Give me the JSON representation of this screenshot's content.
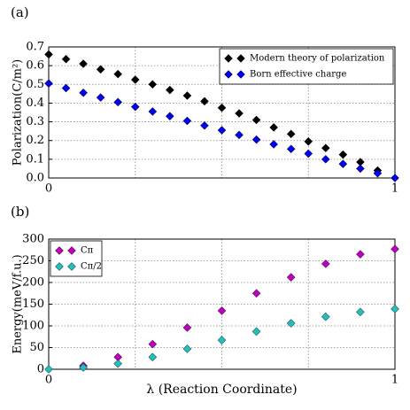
{
  "chart_data": [
    {
      "type": "scatter",
      "panel_label": "(a)",
      "ylabel": "Polarization(C/m²)",
      "x": [
        0,
        0.05,
        0.1,
        0.15,
        0.2,
        0.25,
        0.3,
        0.35,
        0.4,
        0.45,
        0.5,
        0.55,
        0.6,
        0.65,
        0.7,
        0.75,
        0.8,
        0.85,
        0.9,
        0.95,
        1.0
      ],
      "series": [
        {
          "name": "Modern theory of polarization",
          "color": "#000000",
          "values": [
            0.66,
            0.635,
            0.61,
            0.58,
            0.555,
            0.525,
            0.5,
            0.47,
            0.44,
            0.41,
            0.375,
            0.345,
            0.31,
            0.27,
            0.235,
            0.195,
            0.16,
            0.125,
            0.085,
            0.04,
            0.0
          ]
        },
        {
          "name": "Born effective charge",
          "color": "#0000ee",
          "values": [
            0.505,
            0.48,
            0.455,
            0.43,
            0.405,
            0.38,
            0.355,
            0.33,
            0.305,
            0.28,
            0.255,
            0.23,
            0.205,
            0.18,
            0.155,
            0.13,
            0.1,
            0.075,
            0.05,
            0.025,
            0.0
          ]
        }
      ],
      "xlim": [
        0,
        1
      ],
      "xticks": [
        0,
        1
      ],
      "xgrid": [
        0.25,
        0.5,
        0.75
      ],
      "ylim": [
        0,
        0.7
      ],
      "yticks": [
        {
          "value": 0,
          "label": "0.0"
        },
        0.1,
        0.2,
        0.3,
        0.4,
        0.5,
        0.6,
        0.7
      ],
      "grid": true,
      "legend": "upper-right"
    },
    {
      "type": "scatter",
      "panel_label": "(b)",
      "ylabel": "Energy(meV/f.u.)",
      "xlabel": "λ (Reaction Coordinate)",
      "x": [
        0,
        0.1,
        0.2,
        0.3,
        0.4,
        0.5,
        0.6,
        0.7,
        0.8,
        0.9,
        1.0
      ],
      "series": [
        {
          "name": "Cπ",
          "color": "#bf00bf",
          "values": [
            0,
            8,
            28,
            58,
            96,
            135,
            175,
            212,
            243,
            265,
            277
          ]
        },
        {
          "name": "Cπ/2",
          "color": "#20c0c0",
          "values": [
            0,
            4,
            13,
            28,
            47,
            67,
            87,
            106,
            121,
            132,
            139
          ]
        }
      ],
      "xlim": [
        0,
        1
      ],
      "xticks": [
        0,
        1
      ],
      "xgrid": [
        0.25,
        0.5,
        0.75
      ],
      "ylim": [
        0,
        300
      ],
      "yticks": [
        0,
        50,
        100,
        150,
        200,
        250,
        300
      ],
      "grid": true,
      "legend": "upper-left"
    }
  ]
}
